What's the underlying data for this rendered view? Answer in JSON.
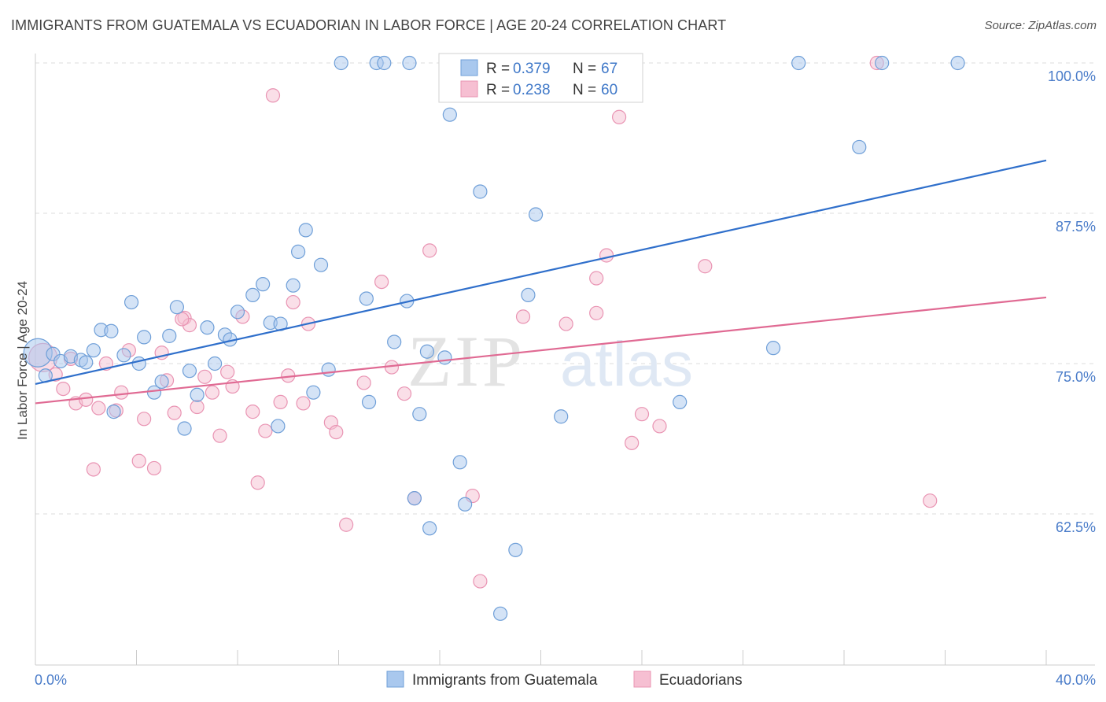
{
  "header": {
    "title": "IMMIGRANTS FROM GUATEMALA VS ECUADORIAN IN LABOR FORCE | AGE 20-24 CORRELATION CHART",
    "source": "Source: ZipAtlas.com"
  },
  "watermark": {
    "zip": "ZIP",
    "atlas": "atlas"
  },
  "colors": {
    "blue_fill": "#a9c8ee",
    "blue_stroke": "#6f9fd8",
    "blue_line": "#2f6fcb",
    "pink_fill": "#f6bfd2",
    "pink_stroke": "#e994b3",
    "pink_line": "#e06a93",
    "grid": "#dddddd",
    "tick_label": "#4a7cc9"
  },
  "legend": {
    "rows": [
      {
        "r_label": "R = ",
        "r_value": "0.379",
        "n_label": "N = ",
        "n_value": "67"
      },
      {
        "r_label": "R = ",
        "r_value": "0.238",
        "n_label": "N = ",
        "n_value": "60"
      }
    ]
  },
  "chart_data": {
    "type": "scatter",
    "xlabel": "",
    "ylabel": "In Labor Force | Age 20-24",
    "xlim": [
      0,
      40
    ],
    "ylim": [
      51,
      101
    ],
    "x_tick_labels": [
      {
        "value": 0,
        "label": "0.0%"
      },
      {
        "value": 40,
        "label": "40.0%"
      }
    ],
    "y_tick_labels": [
      {
        "value": 100,
        "label": "100.0%"
      },
      {
        "value": 87.5,
        "label": "87.5%"
      },
      {
        "value": 75,
        "label": "75.0%"
      },
      {
        "value": 62.5,
        "label": "62.5%"
      }
    ],
    "y_gridlines": [
      100,
      87.5,
      75,
      62.5
    ],
    "x_minor_ticks": [
      0,
      4,
      8,
      12,
      16,
      20,
      24,
      28,
      32,
      36,
      40
    ],
    "grid": true,
    "legend_placement": "top-center",
    "series": [
      {
        "name": "Immigrants from Guatemala",
        "color": "#a9c8ee",
        "trend": {
          "x": [
            0,
            40
          ],
          "y": [
            73.3,
            91.9
          ]
        },
        "points": [
          {
            "x": 0.1,
            "y": 75.9,
            "big": true
          },
          {
            "x": 0.4,
            "y": 74.0
          },
          {
            "x": 0.7,
            "y": 75.8
          },
          {
            "x": 1.0,
            "y": 75.2
          },
          {
            "x": 1.4,
            "y": 75.6
          },
          {
            "x": 1.8,
            "y": 75.3
          },
          {
            "x": 2.0,
            "y": 75.1
          },
          {
            "x": 2.3,
            "y": 76.1
          },
          {
            "x": 2.6,
            "y": 77.8
          },
          {
            "x": 3.0,
            "y": 77.7
          },
          {
            "x": 3.1,
            "y": 71.0
          },
          {
            "x": 3.5,
            "y": 75.7
          },
          {
            "x": 3.8,
            "y": 80.1
          },
          {
            "x": 4.1,
            "y": 75.0
          },
          {
            "x": 4.3,
            "y": 77.2
          },
          {
            "x": 4.7,
            "y": 72.6
          },
          {
            "x": 5.0,
            "y": 73.5
          },
          {
            "x": 5.3,
            "y": 77.3
          },
          {
            "x": 5.6,
            "y": 79.7
          },
          {
            "x": 5.9,
            "y": 69.6
          },
          {
            "x": 6.1,
            "y": 74.4
          },
          {
            "x": 6.4,
            "y": 72.4
          },
          {
            "x": 6.8,
            "y": 78.0
          },
          {
            "x": 7.1,
            "y": 75.0
          },
          {
            "x": 7.5,
            "y": 77.4
          },
          {
            "x": 7.7,
            "y": 77.0
          },
          {
            "x": 8.0,
            "y": 79.3
          },
          {
            "x": 8.6,
            "y": 80.7
          },
          {
            "x": 9.0,
            "y": 81.6
          },
          {
            "x": 9.3,
            "y": 78.4
          },
          {
            "x": 9.6,
            "y": 69.8
          },
          {
            "x": 9.7,
            "y": 78.3
          },
          {
            "x": 10.2,
            "y": 81.5
          },
          {
            "x": 10.4,
            "y": 84.3
          },
          {
            "x": 10.7,
            "y": 86.1
          },
          {
            "x": 11.0,
            "y": 72.6
          },
          {
            "x": 11.3,
            "y": 83.2
          },
          {
            "x": 11.6,
            "y": 74.5
          },
          {
            "x": 12.1,
            "y": 100.0
          },
          {
            "x": 13.1,
            "y": 80.4
          },
          {
            "x": 13.2,
            "y": 71.8
          },
          {
            "x": 13.5,
            "y": 100.0
          },
          {
            "x": 13.8,
            "y": 100.0
          },
          {
            "x": 14.2,
            "y": 76.8
          },
          {
            "x": 14.7,
            "y": 80.2
          },
          {
            "x": 15.0,
            "y": 63.8
          },
          {
            "x": 15.2,
            "y": 70.8
          },
          {
            "x": 15.5,
            "y": 76.0
          },
          {
            "x": 15.6,
            "y": 61.3
          },
          {
            "x": 16.2,
            "y": 75.5
          },
          {
            "x": 16.4,
            "y": 95.7
          },
          {
            "x": 16.8,
            "y": 66.8
          },
          {
            "x": 17.0,
            "y": 63.3
          },
          {
            "x": 17.6,
            "y": 89.3
          },
          {
            "x": 18.4,
            "y": 54.2
          },
          {
            "x": 19.0,
            "y": 59.5
          },
          {
            "x": 19.5,
            "y": 80.7
          },
          {
            "x": 19.8,
            "y": 87.4
          },
          {
            "x": 20.8,
            "y": 70.6
          },
          {
            "x": 25.5,
            "y": 71.8
          },
          {
            "x": 30.2,
            "y": 100.0
          },
          {
            "x": 29.2,
            "y": 76.3
          },
          {
            "x": 32.6,
            "y": 93.0
          },
          {
            "x": 33.5,
            "y": 100.0
          },
          {
            "x": 36.5,
            "y": 100.0
          },
          {
            "x": 19.4,
            "y": 100.0
          },
          {
            "x": 14.8,
            "y": 100.0
          }
        ]
      },
      {
        "name": "Ecuadorians",
        "color": "#f6bfd2",
        "trend": {
          "x": [
            0,
            40
          ],
          "y": [
            71.7,
            80.5
          ]
        },
        "points": [
          {
            "x": 0.3,
            "y": 75.5,
            "big": true
          },
          {
            "x": 0.8,
            "y": 74.1
          },
          {
            "x": 1.1,
            "y": 72.9
          },
          {
            "x": 1.4,
            "y": 75.4
          },
          {
            "x": 1.6,
            "y": 71.7
          },
          {
            "x": 2.0,
            "y": 72.0
          },
          {
            "x": 2.3,
            "y": 66.2
          },
          {
            "x": 2.5,
            "y": 71.3
          },
          {
            "x": 2.8,
            "y": 75.0
          },
          {
            "x": 3.2,
            "y": 71.1
          },
          {
            "x": 3.4,
            "y": 72.6
          },
          {
            "x": 3.7,
            "y": 76.1
          },
          {
            "x": 4.1,
            "y": 66.9
          },
          {
            "x": 4.3,
            "y": 70.4
          },
          {
            "x": 4.7,
            "y": 66.3
          },
          {
            "x": 5.0,
            "y": 75.9
          },
          {
            "x": 5.2,
            "y": 73.6
          },
          {
            "x": 5.5,
            "y": 70.9
          },
          {
            "x": 5.9,
            "y": 78.8
          },
          {
            "x": 6.1,
            "y": 78.2
          },
          {
            "x": 6.4,
            "y": 71.4
          },
          {
            "x": 6.7,
            "y": 73.9
          },
          {
            "x": 7.0,
            "y": 72.6
          },
          {
            "x": 7.3,
            "y": 69.0
          },
          {
            "x": 7.6,
            "y": 74.3
          },
          {
            "x": 7.8,
            "y": 73.1
          },
          {
            "x": 8.2,
            "y": 78.9
          },
          {
            "x": 8.6,
            "y": 71.0
          },
          {
            "x": 8.8,
            "y": 65.1
          },
          {
            "x": 9.1,
            "y": 69.4
          },
          {
            "x": 9.4,
            "y": 97.3
          },
          {
            "x": 9.7,
            "y": 71.8
          },
          {
            "x": 10.0,
            "y": 74.0
          },
          {
            "x": 10.2,
            "y": 80.1
          },
          {
            "x": 10.6,
            "y": 71.7
          },
          {
            "x": 10.8,
            "y": 78.3
          },
          {
            "x": 11.7,
            "y": 70.1
          },
          {
            "x": 11.9,
            "y": 69.3
          },
          {
            "x": 12.3,
            "y": 61.6
          },
          {
            "x": 13.0,
            "y": 73.4
          },
          {
            "x": 13.7,
            "y": 81.8
          },
          {
            "x": 14.1,
            "y": 74.7
          },
          {
            "x": 14.6,
            "y": 72.5
          },
          {
            "x": 15.0,
            "y": 63.8
          },
          {
            "x": 15.6,
            "y": 84.4
          },
          {
            "x": 17.3,
            "y": 64.0
          },
          {
            "x": 17.6,
            "y": 56.9
          },
          {
            "x": 19.3,
            "y": 78.9
          },
          {
            "x": 21.0,
            "y": 78.3
          },
          {
            "x": 22.2,
            "y": 79.2
          },
          {
            "x": 22.2,
            "y": 82.1
          },
          {
            "x": 22.6,
            "y": 84.0
          },
          {
            "x": 23.1,
            "y": 95.5
          },
          {
            "x": 23.6,
            "y": 68.4
          },
          {
            "x": 24.0,
            "y": 70.8
          },
          {
            "x": 24.7,
            "y": 69.8
          },
          {
            "x": 26.5,
            "y": 83.1
          },
          {
            "x": 33.3,
            "y": 100.0
          },
          {
            "x": 35.4,
            "y": 63.6
          },
          {
            "x": 5.8,
            "y": 78.7
          }
        ]
      }
    ]
  }
}
